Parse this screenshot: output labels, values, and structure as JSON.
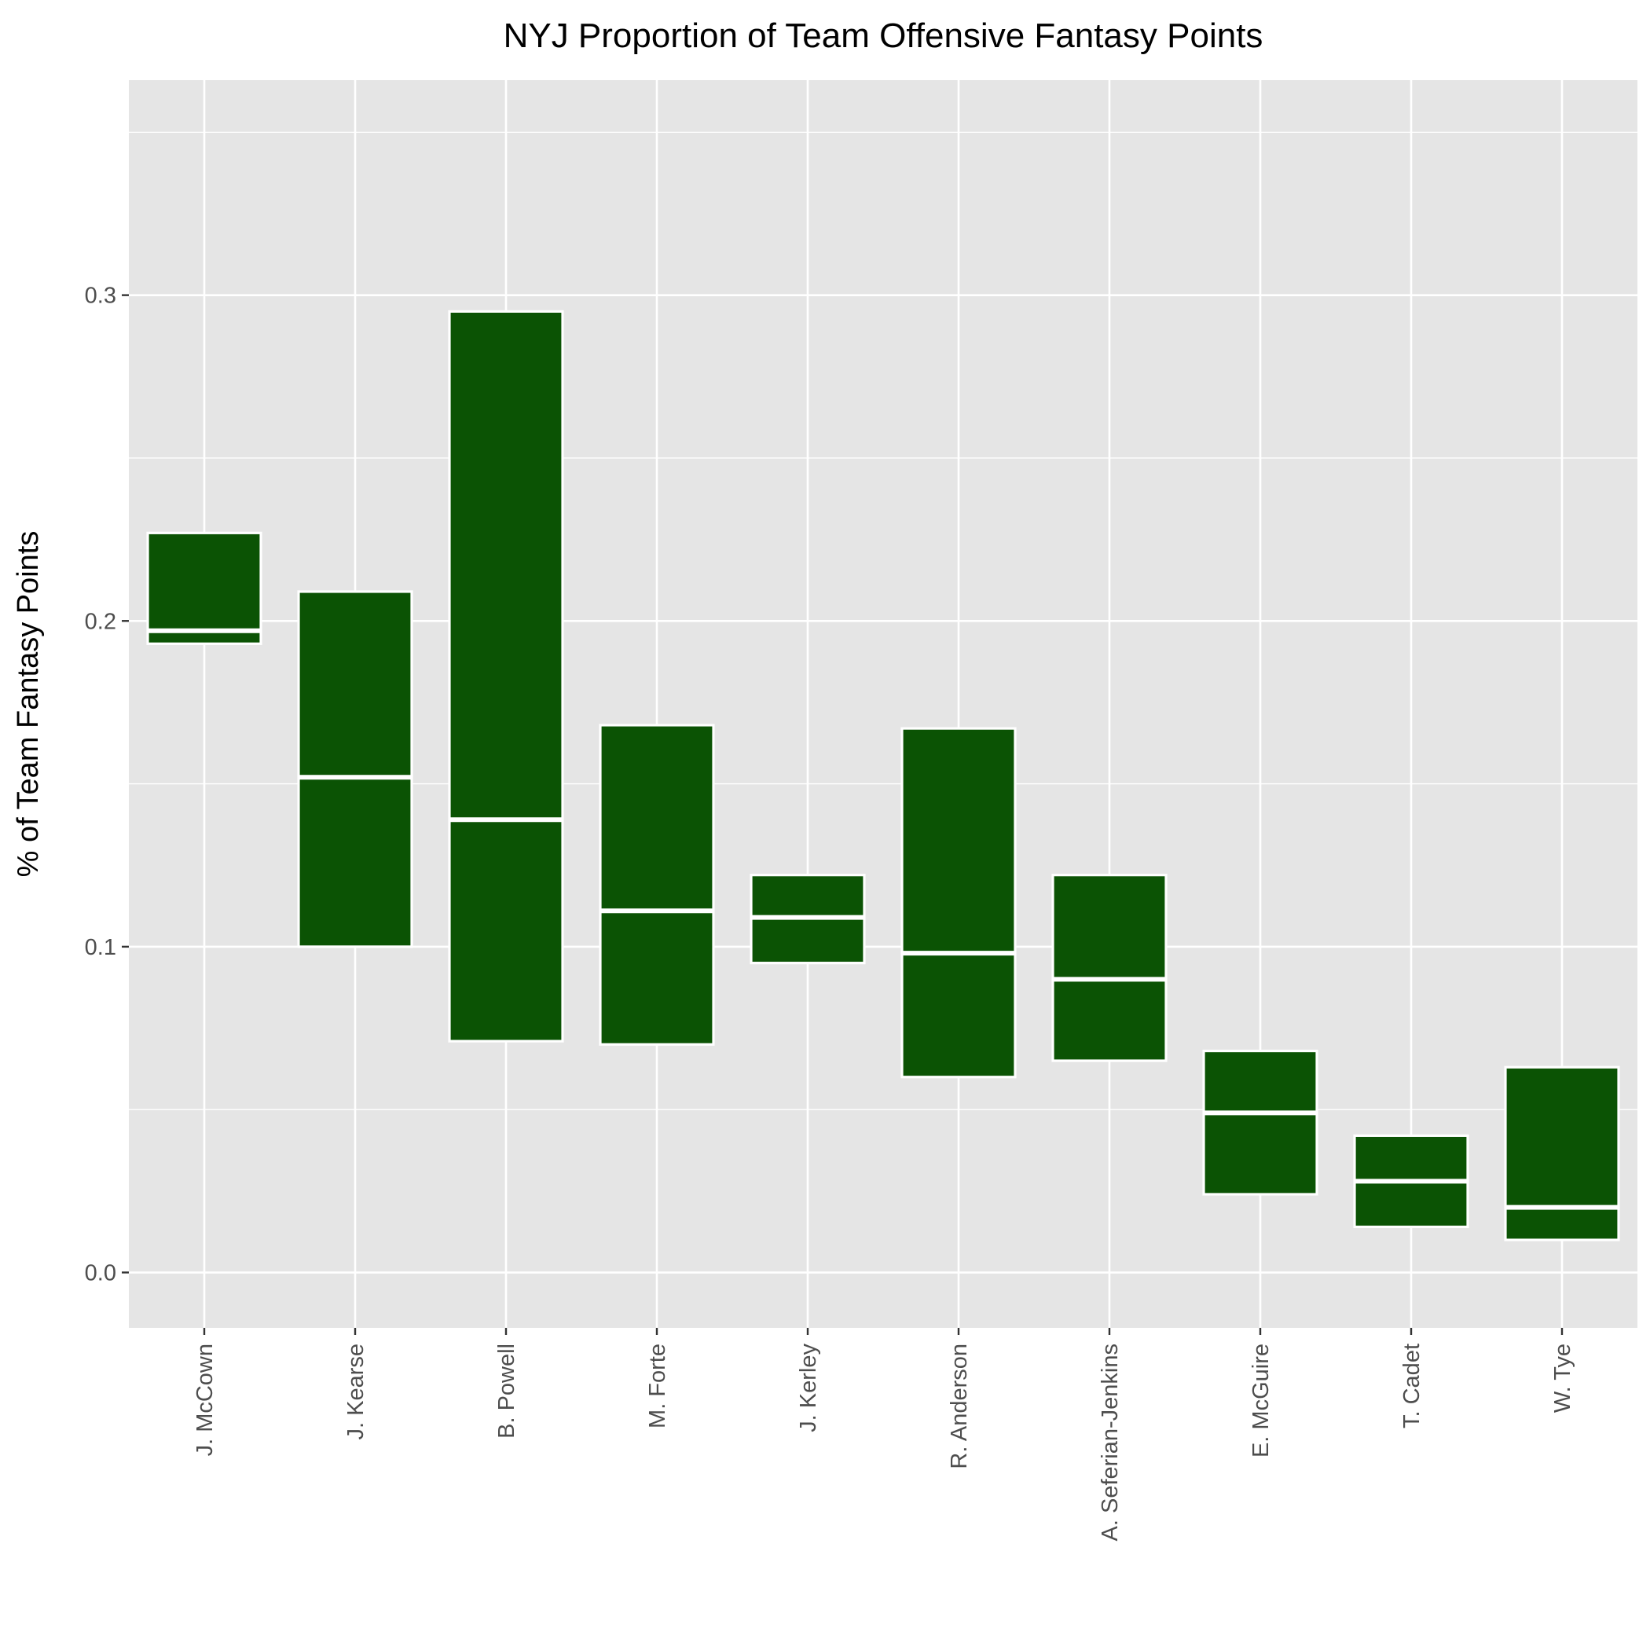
{
  "chart_data": {
    "type": "crossbar",
    "title": "NYJ Proportion of Team Offensive Fantasy Points",
    "xlabel": "",
    "ylabel": "% of Team Fantasy Points",
    "ylim": [
      -0.017,
      0.366
    ],
    "yticks": [
      0.0,
      0.1,
      0.2,
      0.3
    ],
    "ytick_labels": [
      "0.0",
      "0.1",
      "0.2",
      "0.3"
    ],
    "minor_gridlines": [
      0.05,
      0.15,
      0.25,
      0.35
    ],
    "grid": true,
    "fill_color": "#0b5304",
    "outline_color": "#ffffff",
    "panel_color": "#e5e5e5",
    "categories": [
      "J. McCown",
      "J. Kearse",
      "B. Powell",
      "M. Forte",
      "J. Kerley",
      "R. Anderson",
      "A. Seferian-Jenkins",
      "E. McGuire",
      "T. Cadet",
      "W. Tye"
    ],
    "series": [
      {
        "name": "lower",
        "values": [
          0.193,
          0.1,
          0.071,
          0.07,
          0.095,
          0.06,
          0.065,
          0.024,
          0.014,
          0.01
        ]
      },
      {
        "name": "median",
        "values": [
          0.197,
          0.152,
          0.139,
          0.111,
          0.109,
          0.098,
          0.09,
          0.049,
          0.028,
          0.02
        ]
      },
      {
        "name": "upper",
        "values": [
          0.227,
          0.209,
          0.295,
          0.168,
          0.122,
          0.167,
          0.122,
          0.068,
          0.042,
          0.063
        ]
      }
    ]
  }
}
